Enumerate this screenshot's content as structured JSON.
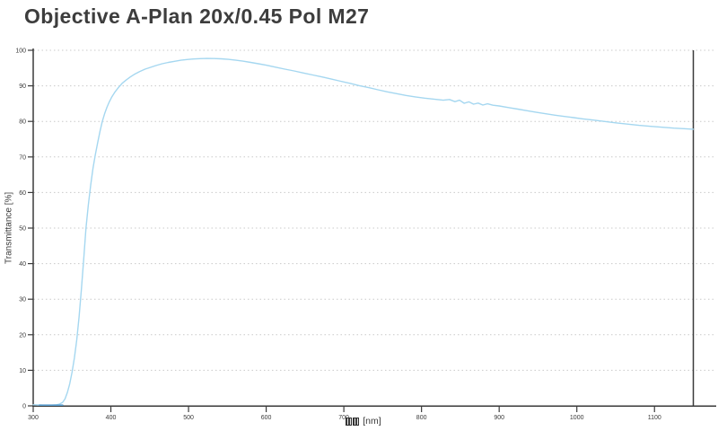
{
  "title": "Objective A-Plan 20x/0.45 Pol M27",
  "colors": {
    "axis": "#3a3a3a",
    "grid": "#c9c9c9",
    "curve": "#a5d7f0",
    "curve_axis_overlap": "#5d9fd0",
    "title_text": "#3d3d3d",
    "tick_text": "#3a3a3a"
  },
  "chart_data": {
    "type": "line",
    "title": "Objective A-Plan 20x/0.45 Pol M27",
    "ylabel": "Transmittance [%]",
    "xlabel_unit": "[nm]",
    "xlabel_missing_glyph_count": 2,
    "xlim": [
      300,
      1150
    ],
    "ylim": [
      0,
      100
    ],
    "x_ticks": [
      300,
      400,
      500,
      600,
      700,
      800,
      900,
      1000,
      1100
    ],
    "y_ticks": [
      0,
      10,
      20,
      30,
      40,
      50,
      60,
      70,
      80,
      90,
      100
    ],
    "grid": "dotted horizontal lines at every y tick",
    "legend": "none",
    "frame": "left, bottom and right solid axis lines; no top border",
    "axis_overlap_segment_nm": [
      308,
      338
    ],
    "series": [
      {
        "name": "Transmittance",
        "color": "#a5d7f0",
        "points": [
          [
            300,
            0.3
          ],
          [
            306,
            0.25
          ],
          [
            312,
            0.2
          ],
          [
            318,
            0.2
          ],
          [
            324,
            0.2
          ],
          [
            330,
            0.3
          ],
          [
            334,
            0.5
          ],
          [
            338,
            1.0
          ],
          [
            341,
            2.0
          ],
          [
            344,
            3.8
          ],
          [
            347,
            6.2
          ],
          [
            350,
            9.5
          ],
          [
            353,
            13.5
          ],
          [
            356,
            18.5
          ],
          [
            359,
            25.0
          ],
          [
            362,
            32.5
          ],
          [
            365,
            41.0
          ],
          [
            368,
            50.0
          ],
          [
            371,
            56.5
          ],
          [
            374,
            62.0
          ],
          [
            377,
            66.8
          ],
          [
            380,
            70.6
          ],
          [
            383,
            74.0
          ],
          [
            386,
            77.2
          ],
          [
            389,
            80.0
          ],
          [
            392,
            82.2
          ],
          [
            395,
            84.0
          ],
          [
            398,
            85.5
          ],
          [
            401,
            86.8
          ],
          [
            405,
            88.2
          ],
          [
            410,
            89.6
          ],
          [
            415,
            90.8
          ],
          [
            420,
            91.7
          ],
          [
            425,
            92.5
          ],
          [
            430,
            93.2
          ],
          [
            437,
            94.0
          ],
          [
            444,
            94.7
          ],
          [
            451,
            95.2
          ],
          [
            458,
            95.7
          ],
          [
            466,
            96.2
          ],
          [
            474,
            96.6
          ],
          [
            482,
            96.9
          ],
          [
            490,
            97.2
          ],
          [
            498,
            97.4
          ],
          [
            506,
            97.55
          ],
          [
            515,
            97.65
          ],
          [
            524,
            97.7
          ],
          [
            533,
            97.68
          ],
          [
            542,
            97.6
          ],
          [
            551,
            97.45
          ],
          [
            560,
            97.25
          ],
          [
            570,
            96.95
          ],
          [
            580,
            96.6
          ],
          [
            590,
            96.2
          ],
          [
            600,
            95.8
          ],
          [
            612,
            95.25
          ],
          [
            624,
            94.7
          ],
          [
            636,
            94.2
          ],
          [
            648,
            93.6
          ],
          [
            660,
            93.05
          ],
          [
            672,
            92.5
          ],
          [
            684,
            91.9
          ],
          [
            696,
            91.3
          ],
          [
            708,
            90.7
          ],
          [
            720,
            90.05
          ],
          [
            732,
            89.5
          ],
          [
            744,
            88.9
          ],
          [
            756,
            88.3
          ],
          [
            768,
            87.8
          ],
          [
            780,
            87.3
          ],
          [
            792,
            86.9
          ],
          [
            804,
            86.55
          ],
          [
            816,
            86.25
          ],
          [
            828,
            85.95
          ],
          [
            836,
            86.15
          ],
          [
            843,
            85.55
          ],
          [
            849,
            85.95
          ],
          [
            855,
            85.1
          ],
          [
            861,
            85.5
          ],
          [
            867,
            84.85
          ],
          [
            873,
            85.15
          ],
          [
            879,
            84.6
          ],
          [
            885,
            84.95
          ],
          [
            892,
            84.55
          ],
          [
            900,
            84.35
          ],
          [
            912,
            83.9
          ],
          [
            924,
            83.45
          ],
          [
            936,
            83.0
          ],
          [
            948,
            82.55
          ],
          [
            960,
            82.15
          ],
          [
            972,
            81.75
          ],
          [
            984,
            81.4
          ],
          [
            996,
            81.05
          ],
          [
            1008,
            80.7
          ],
          [
            1020,
            80.4
          ],
          [
            1035,
            80.0
          ],
          [
            1050,
            79.6
          ],
          [
            1065,
            79.25
          ],
          [
            1080,
            78.9
          ],
          [
            1095,
            78.6
          ],
          [
            1110,
            78.35
          ],
          [
            1125,
            78.1
          ],
          [
            1138,
            77.95
          ],
          [
            1150,
            77.8
          ]
        ]
      }
    ]
  }
}
